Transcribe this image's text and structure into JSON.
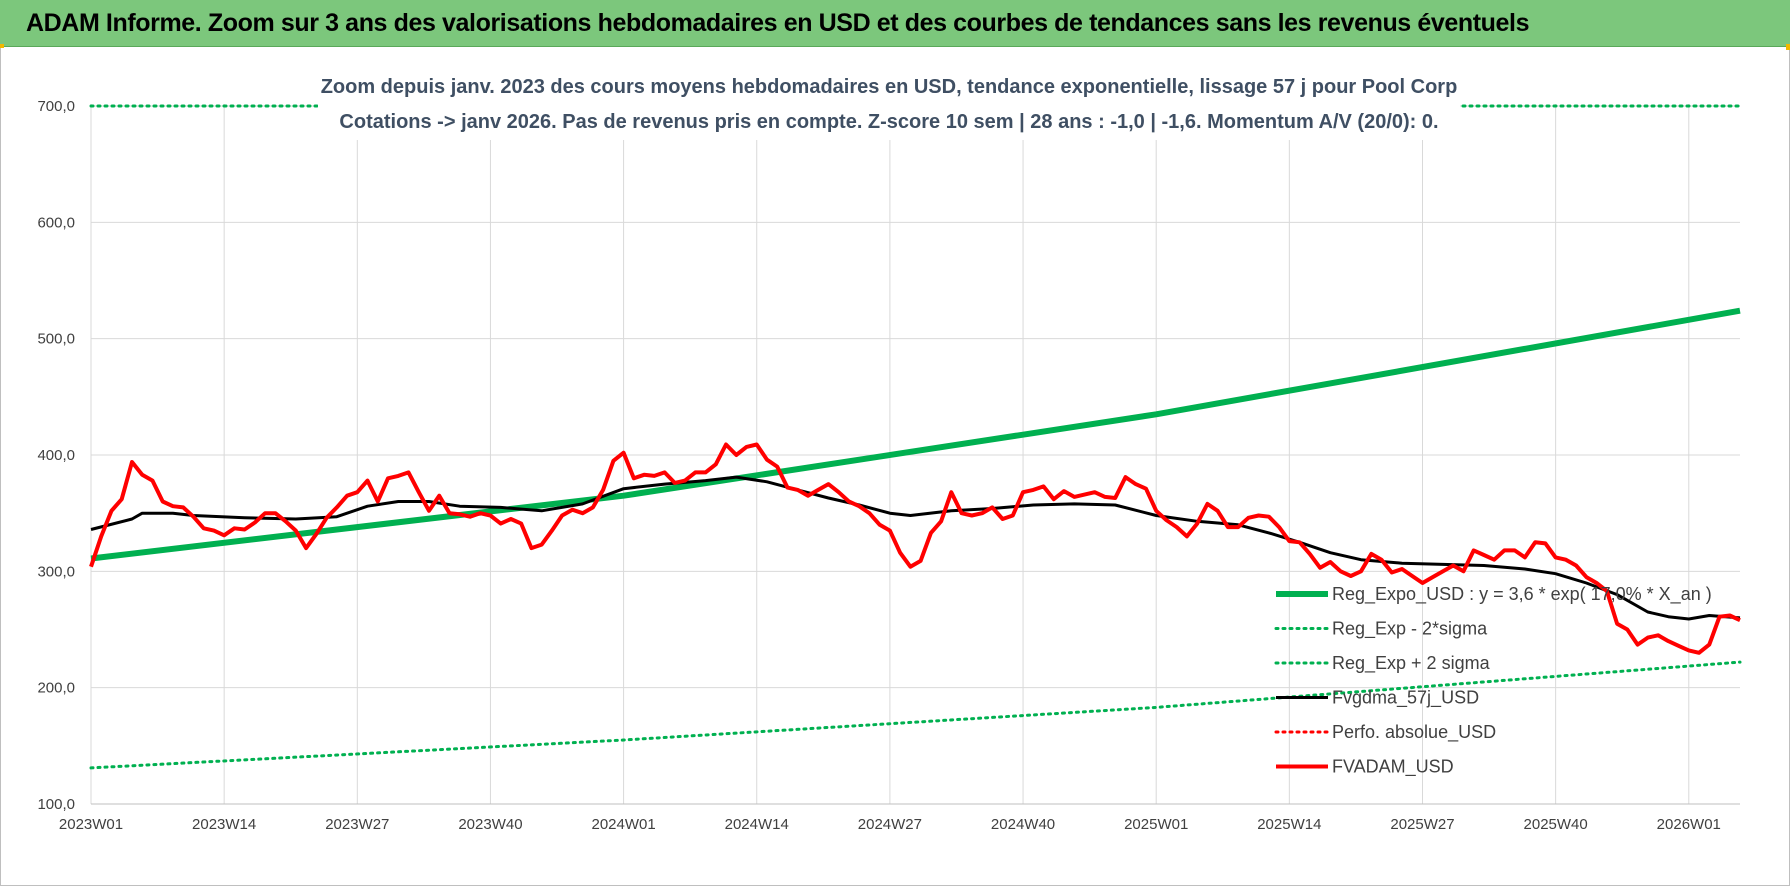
{
  "header": {
    "title": "ADAM Informe. Zoom sur 3 ans des valorisations hebdomadaires en USD et des courbes de tendances sans les revenus éventuels"
  },
  "colors": {
    "header_bg": "#7cc77c",
    "regression": "#00b050",
    "fvgdma": "#000000",
    "fvadam": "#ff0000",
    "perfo": "#ff0000",
    "subtitle": "#3f4f63"
  },
  "chart_data": {
    "type": "line",
    "subtitle_lines": [
      "Zoom depuis janv. 2023 des cours moyens hebdomadaires en USD, tendance exponentielle, lissage 57 j pour Pool Corp",
      "Cotations -> janv 2026. Pas de revenus pris en compte. Z-score 10 sem | 28 ans : -1,0 | -1,6. Momentum A/V (20/0): 0."
    ],
    "ylim": [
      100,
      700
    ],
    "y_ticks": [
      "100,0",
      "200,0",
      "300,0",
      "400,0",
      "500,0",
      "600,0",
      "700,0"
    ],
    "y_tick_values": [
      100,
      200,
      300,
      400,
      500,
      600,
      700
    ],
    "x_ticks": [
      "2023W01",
      "2023W14",
      "2023W27",
      "2023W40",
      "2024W01",
      "2024W14",
      "2024W27",
      "2024W40",
      "2025W01",
      "2025W14",
      "2025W27",
      "2025W40",
      "2026W01"
    ],
    "x_tick_weeks": [
      0,
      13,
      26,
      39,
      52,
      65,
      78,
      91,
      104,
      117,
      130,
      143,
      156
    ],
    "x_range_weeks": [
      0,
      161
    ],
    "grid": true,
    "legend_position": "bottom-right",
    "series": [
      {
        "name": "Reg_Expo_USD : y = 3,6 * exp( 17,0% *  X_an )",
        "style": "solid-thick",
        "color": "#00b050",
        "points": [
          [
            0,
            311
          ],
          [
            52,
            365
          ],
          [
            104,
            435
          ],
          [
            161,
            524
          ]
        ]
      },
      {
        "name": "Reg_Exp - 2*sigma",
        "style": "dotted",
        "color": "#00b050",
        "points": [
          [
            0,
            131
          ],
          [
            52,
            155
          ],
          [
            104,
            183
          ],
          [
            161,
            222
          ]
        ]
      },
      {
        "name": "Reg_Exp + 2 sigma",
        "style": "dotted",
        "color": "#00b050",
        "points": [
          [
            0,
            700
          ],
          [
            161,
            700
          ]
        ]
      },
      {
        "name": "Fvgdma_57j_USD",
        "style": "solid",
        "color": "#000000",
        "points": [
          [
            0,
            336
          ],
          [
            4,
            345
          ],
          [
            5,
            350
          ],
          [
            8,
            350
          ],
          [
            10,
            348
          ],
          [
            15,
            346
          ],
          [
            20,
            345
          ],
          [
            24,
            347
          ],
          [
            27,
            356
          ],
          [
            30,
            360
          ],
          [
            33,
            360
          ],
          [
            36,
            356
          ],
          [
            40,
            355
          ],
          [
            44,
            352
          ],
          [
            48,
            358
          ],
          [
            52,
            371
          ],
          [
            56,
            375
          ],
          [
            60,
            378
          ],
          [
            63,
            381
          ],
          [
            66,
            377
          ],
          [
            69,
            370
          ],
          [
            72,
            363
          ],
          [
            75,
            357
          ],
          [
            78,
            350
          ],
          [
            80,
            348
          ],
          [
            84,
            352
          ],
          [
            88,
            354
          ],
          [
            92,
            357
          ],
          [
            96,
            358
          ],
          [
            100,
            357
          ],
          [
            104,
            348
          ],
          [
            108,
            343
          ],
          [
            112,
            340
          ],
          [
            115,
            333
          ],
          [
            118,
            325
          ],
          [
            121,
            316
          ],
          [
            124,
            310
          ],
          [
            128,
            307
          ],
          [
            132,
            306
          ],
          [
            136,
            305
          ],
          [
            140,
            302
          ],
          [
            143,
            298
          ],
          [
            146,
            290
          ],
          [
            149,
            280
          ],
          [
            152,
            265
          ],
          [
            154,
            261
          ],
          [
            156,
            259
          ],
          [
            158,
            262
          ],
          [
            161,
            260
          ]
        ]
      },
      {
        "name": "Perfo. absolue_USD",
        "style": "dotted",
        "color": "#ff0000",
        "points": []
      },
      {
        "name": "FVADAM_USD",
        "style": "solid-thick",
        "color": "#ff0000",
        "points": [
          [
            0,
            304
          ],
          [
            1,
            330
          ],
          [
            2,
            352
          ],
          [
            3,
            362
          ],
          [
            4,
            394
          ],
          [
            5,
            383
          ],
          [
            6,
            378
          ],
          [
            7,
            360
          ],
          [
            8,
            356
          ],
          [
            9,
            355
          ],
          [
            10,
            347
          ],
          [
            11,
            337
          ],
          [
            12,
            335
          ],
          [
            13,
            331
          ],
          [
            14,
            337
          ],
          [
            15,
            336
          ],
          [
            16,
            342
          ],
          [
            17,
            350
          ],
          [
            18,
            350
          ],
          [
            19,
            343
          ],
          [
            20,
            335
          ],
          [
            21,
            320
          ],
          [
            22,
            332
          ],
          [
            23,
            346
          ],
          [
            24,
            355
          ],
          [
            25,
            365
          ],
          [
            26,
            368
          ],
          [
            27,
            378
          ],
          [
            28,
            360
          ],
          [
            29,
            380
          ],
          [
            30,
            382
          ],
          [
            31,
            385
          ],
          [
            32,
            368
          ],
          [
            33,
            352
          ],
          [
            34,
            365
          ],
          [
            35,
            350
          ],
          [
            36,
            349
          ],
          [
            37,
            347
          ],
          [
            38,
            350
          ],
          [
            39,
            348
          ],
          [
            40,
            341
          ],
          [
            41,
            345
          ],
          [
            42,
            341
          ],
          [
            43,
            320
          ],
          [
            44,
            323
          ],
          [
            45,
            335
          ],
          [
            46,
            348
          ],
          [
            47,
            353
          ],
          [
            48,
            350
          ],
          [
            49,
            355
          ],
          [
            50,
            370
          ],
          [
            51,
            395
          ],
          [
            52,
            402
          ],
          [
            53,
            380
          ],
          [
            54,
            383
          ],
          [
            55,
            382
          ],
          [
            56,
            385
          ],
          [
            57,
            376
          ],
          [
            58,
            378
          ],
          [
            59,
            385
          ],
          [
            60,
            385
          ],
          [
            61,
            392
          ],
          [
            62,
            409
          ],
          [
            63,
            400
          ],
          [
            64,
            407
          ],
          [
            65,
            409
          ],
          [
            66,
            396
          ],
          [
            67,
            390
          ],
          [
            68,
            372
          ],
          [
            69,
            370
          ],
          [
            70,
            365
          ],
          [
            71,
            370
          ],
          [
            72,
            375
          ],
          [
            73,
            368
          ],
          [
            74,
            360
          ],
          [
            75,
            356
          ],
          [
            76,
            350
          ],
          [
            77,
            340
          ],
          [
            78,
            335
          ],
          [
            79,
            316
          ],
          [
            80,
            304
          ],
          [
            81,
            309
          ],
          [
            82,
            333
          ],
          [
            83,
            343
          ],
          [
            84,
            368
          ],
          [
            85,
            350
          ],
          [
            86,
            348
          ],
          [
            87,
            350
          ],
          [
            88,
            355
          ],
          [
            89,
            345
          ],
          [
            90,
            348
          ],
          [
            91,
            368
          ],
          [
            92,
            370
          ],
          [
            93,
            373
          ],
          [
            94,
            362
          ],
          [
            95,
            369
          ],
          [
            96,
            364
          ],
          [
            97,
            366
          ],
          [
            98,
            368
          ],
          [
            99,
            364
          ],
          [
            100,
            363
          ],
          [
            101,
            381
          ],
          [
            102,
            375
          ],
          [
            103,
            371
          ],
          [
            104,
            352
          ],
          [
            105,
            344
          ],
          [
            106,
            338
          ],
          [
            107,
            330
          ],
          [
            108,
            341
          ],
          [
            109,
            358
          ],
          [
            110,
            352
          ],
          [
            111,
            338
          ],
          [
            112,
            338
          ],
          [
            113,
            346
          ],
          [
            114,
            348
          ],
          [
            115,
            347
          ],
          [
            116,
            338
          ],
          [
            117,
            326
          ],
          [
            118,
            325
          ],
          [
            119,
            315
          ],
          [
            120,
            303
          ],
          [
            121,
            308
          ],
          [
            122,
            300
          ],
          [
            123,
            296
          ],
          [
            124,
            300
          ],
          [
            125,
            315
          ],
          [
            126,
            310
          ],
          [
            127,
            299
          ],
          [
            128,
            302
          ],
          [
            129,
            296
          ],
          [
            130,
            290
          ],
          [
            131,
            295
          ],
          [
            132,
            300
          ],
          [
            133,
            305
          ],
          [
            134,
            300
          ],
          [
            135,
            318
          ],
          [
            136,
            314
          ],
          [
            137,
            310
          ],
          [
            138,
            318
          ],
          [
            139,
            318
          ],
          [
            140,
            312
          ],
          [
            141,
            325
          ],
          [
            142,
            324
          ],
          [
            143,
            312
          ],
          [
            144,
            310
          ],
          [
            145,
            305
          ],
          [
            146,
            295
          ],
          [
            147,
            290
          ],
          [
            148,
            283
          ],
          [
            149,
            255
          ],
          [
            150,
            250
          ],
          [
            151,
            237
          ],
          [
            152,
            243
          ],
          [
            153,
            245
          ],
          [
            154,
            240
          ],
          [
            155,
            236
          ],
          [
            156,
            232
          ],
          [
            157,
            230
          ],
          [
            158,
            237
          ],
          [
            159,
            261
          ],
          [
            160,
            262
          ],
          [
            161,
            258
          ]
        ]
      }
    ]
  }
}
